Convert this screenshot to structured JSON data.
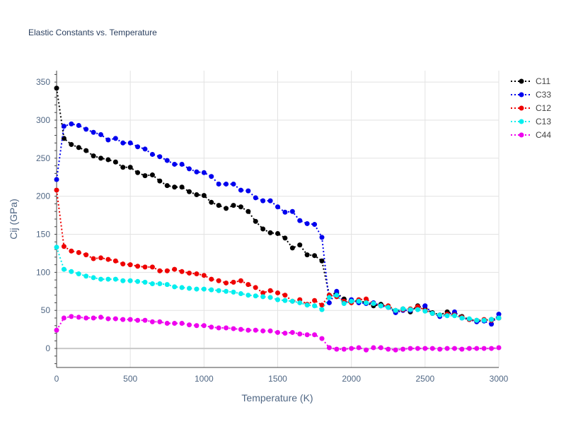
{
  "chart_data": {
    "type": "line",
    "title": "Elastic Constants vs. Temperature",
    "xlabel": "Temperature (K)",
    "ylabel": "Cij (GPa)",
    "xlim": [
      0,
      3000
    ],
    "ylim": [
      -25,
      365
    ],
    "xticks": [
      0,
      500,
      1000,
      1500,
      2000,
      2500,
      3000
    ],
    "xtick_labels": [
      "0",
      "500",
      "1000",
      "1500",
      "2000",
      "2500",
      "3000"
    ],
    "yticks": [
      0,
      50,
      100,
      150,
      200,
      250,
      300,
      350
    ],
    "ytick_labels": [
      "0",
      "50",
      "100",
      "150",
      "200",
      "250",
      "300",
      "350"
    ],
    "grid": true,
    "legend_position": "top-right",
    "x": [
      0,
      50,
      100,
      150,
      200,
      250,
      300,
      350,
      400,
      450,
      500,
      550,
      600,
      650,
      700,
      750,
      800,
      850,
      900,
      950,
      1000,
      1050,
      1100,
      1150,
      1200,
      1250,
      1300,
      1350,
      1400,
      1450,
      1500,
      1550,
      1600,
      1650,
      1700,
      1750,
      1800,
      1850,
      1900,
      1950,
      2000,
      2050,
      2100,
      2150,
      2200,
      2250,
      2300,
      2350,
      2400,
      2450,
      2500,
      2550,
      2600,
      2650,
      2700,
      2750,
      2800,
      2850,
      2900,
      2950,
      3000
    ],
    "series": [
      {
        "name": "C11",
        "color": "#000000",
        "values": [
          342,
          276,
          268,
          264,
          260,
          253,
          250,
          248,
          245,
          238,
          238,
          231,
          227,
          228,
          220,
          214,
          212,
          212,
          206,
          202,
          201,
          192,
          188,
          184,
          188,
          186,
          180,
          167,
          157,
          152,
          151,
          145,
          132,
          136,
          123,
          122,
          115,
          70,
          73,
          65,
          62,
          63,
          60,
          56,
          58,
          55,
          48,
          52,
          48,
          56,
          52,
          47,
          44,
          48,
          46,
          42,
          38,
          36,
          37,
          38,
          40
        ]
      },
      {
        "name": "C33",
        "color": "#0000ee",
        "values": [
          222,
          292,
          295,
          293,
          288,
          284,
          281,
          274,
          276,
          270,
          270,
          265,
          262,
          255,
          252,
          247,
          242,
          242,
          236,
          232,
          231,
          226,
          216,
          216,
          216,
          208,
          207,
          198,
          194,
          194,
          186,
          179,
          180,
          168,
          164,
          163,
          146,
          60,
          75,
          60,
          64,
          60,
          59,
          60,
          56,
          54,
          47,
          50,
          50,
          54,
          56,
          46,
          42,
          44,
          48,
          40,
          38,
          35,
          36,
          32,
          45
        ]
      },
      {
        "name": "C12",
        "color": "#ee0000",
        "values": [
          208,
          134,
          128,
          126,
          123,
          118,
          119,
          117,
          115,
          111,
          110,
          108,
          107,
          107,
          102,
          102,
          104,
          101,
          99,
          98,
          96,
          91,
          89,
          86,
          87,
          89,
          84,
          80,
          73,
          76,
          73,
          70,
          62,
          64,
          58,
          63,
          57,
          70,
          68,
          62,
          60,
          64,
          65,
          59,
          56,
          56,
          50,
          51,
          52,
          55,
          50,
          46,
          44,
          45,
          44,
          41,
          38,
          37,
          38,
          37,
          40
        ]
      },
      {
        "name": "C13",
        "color": "#00eeee",
        "values": [
          133,
          104,
          101,
          98,
          95,
          93,
          91,
          91,
          91,
          89,
          89,
          88,
          87,
          85,
          85,
          84,
          81,
          80,
          79,
          78,
          78,
          77,
          76,
          75,
          74,
          72,
          70,
          69,
          68,
          67,
          64,
          63,
          62,
          60,
          57,
          56,
          51,
          67,
          70,
          59,
          62,
          62,
          60,
          59,
          56,
          54,
          50,
          52,
          51,
          51,
          49,
          46,
          44,
          43,
          43,
          40,
          39,
          37,
          37,
          38,
          40
        ]
      },
      {
        "name": "C44",
        "color": "#ee00ee",
        "values": [
          24,
          40,
          42,
          41,
          40,
          40,
          41,
          39,
          39,
          38,
          38,
          37,
          37,
          35,
          35,
          33,
          33,
          33,
          31,
          30,
          30,
          28,
          27,
          27,
          26,
          25,
          24,
          24,
          23,
          23,
          21,
          20,
          21,
          19,
          18,
          18,
          13,
          1,
          -1,
          -1,
          0,
          1,
          -2,
          1,
          1,
          -1,
          -2,
          -1,
          0,
          0,
          0,
          0,
          -1,
          0,
          0,
          -1,
          0,
          0,
          0,
          0,
          1
        ]
      }
    ]
  }
}
